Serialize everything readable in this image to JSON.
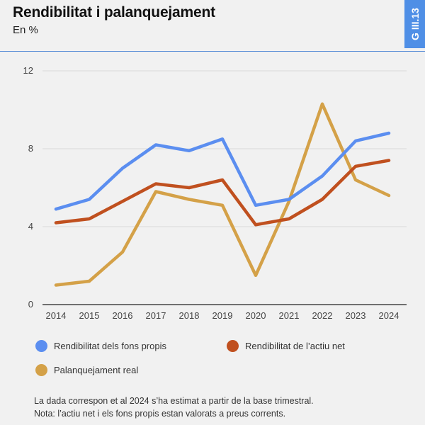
{
  "header": {
    "title": "Rendibilitat i palanquejament",
    "subtitle": "En %",
    "tag": "G III.13"
  },
  "chart_data": {
    "type": "line",
    "x": [
      "2014",
      "2015",
      "2016",
      "2017",
      "2018",
      "2019",
      "2020",
      "2021",
      "2022",
      "2023",
      "2024"
    ],
    "ylim": [
      0,
      12
    ],
    "yticks": [
      0,
      4,
      8,
      12
    ],
    "grid": true,
    "legend_position": "bottom",
    "series": [
      {
        "name": "Rendibilitat dels fons propis",
        "color": "#5b8ef0",
        "values": [
          4.9,
          5.4,
          7.0,
          8.2,
          7.9,
          8.5,
          5.1,
          5.4,
          6.6,
          8.4,
          8.8
        ]
      },
      {
        "name": "Rendibilitat de l’actiu net",
        "color": "#c0501f",
        "values": [
          4.2,
          4.4,
          5.3,
          6.2,
          6.0,
          6.4,
          4.1,
          4.4,
          5.4,
          7.1,
          7.4
        ]
      },
      {
        "name": "Palanquejament real",
        "color": "#d4a148",
        "values": [
          1.0,
          1.2,
          2.7,
          5.8,
          5.4,
          5.1,
          1.5,
          5.3,
          10.3,
          6.4,
          5.6
        ]
      }
    ]
  },
  "notes": [
    "La dada correspon et al 2024 s’ha estimat a partir de la base trimestral.",
    "Nota: l’actiu net i els fons propis estan valorats a preus corrents."
  ]
}
